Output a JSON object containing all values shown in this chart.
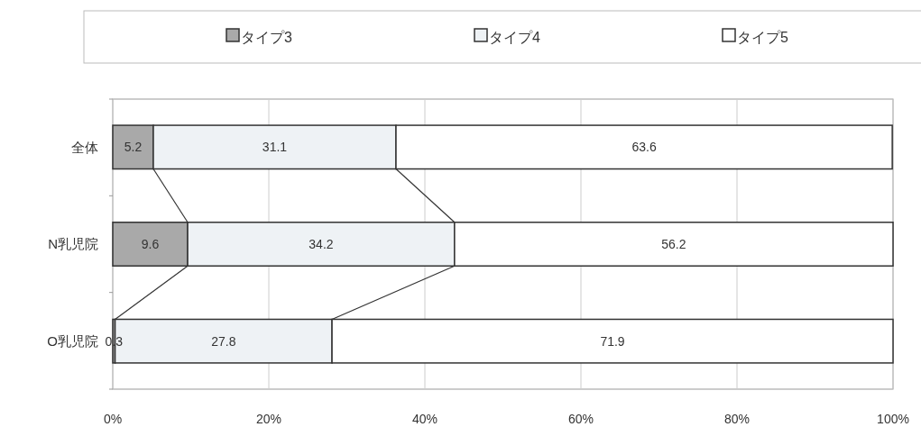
{
  "chart_data": {
    "type": "bar",
    "orientation": "horizontal",
    "stacked": true,
    "categories": [
      "全体",
      "N乳児院",
      "O乳児院"
    ],
    "series": [
      {
        "name": "タイプ3",
        "color": "#a9a9a9",
        "values": [
          5.2,
          9.6,
          0.3
        ]
      },
      {
        "name": "タイプ4",
        "color": "#eef2f5",
        "values": [
          31.1,
          34.2,
          27.8
        ]
      },
      {
        "name": "タイプ5",
        "color": "#ffffff",
        "values": [
          63.6,
          56.2,
          71.9
        ]
      }
    ],
    "xlim": [
      0,
      100
    ],
    "xticks": [
      {
        "value": 0,
        "label": "0%"
      },
      {
        "value": 20,
        "label": "20%"
      },
      {
        "value": 40,
        "label": "40%"
      },
      {
        "value": 60,
        "label": "60%"
      },
      {
        "value": 80,
        "label": "80%"
      },
      {
        "value": 100,
        "label": "100%"
      }
    ],
    "grid": "x",
    "legend": "top",
    "data_labels": true
  }
}
